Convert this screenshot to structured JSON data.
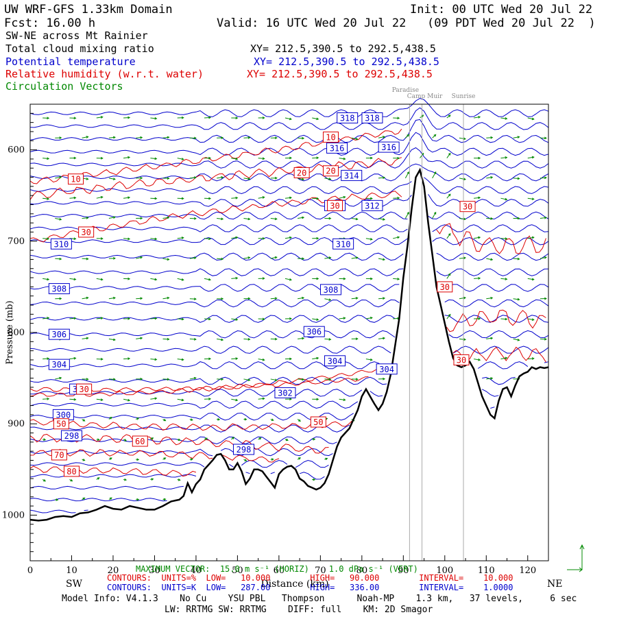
{
  "header": {
    "domain_title": "UW WRF-GFS 1.33km Domain",
    "init": "Init: 00 UTC Wed 20 Jul 22",
    "fcst": "Fcst:   16.00 h",
    "valid": "Valid: 16 UTC Wed 20 Jul 22   (09 PDT Wed 20 Jul 22  )",
    "cross_section": "SW-NE across Mt Rainier",
    "fields": [
      {
        "label": "Total cloud mixing ratio",
        "xy": "XY= 212.5,390.5 to 292.5,438.5",
        "color": "#000000"
      },
      {
        "label": "Potential temperature",
        "xy": "XY= 212.5,390.5 to 292.5,438.5",
        "color": "#0000cc"
      },
      {
        "label": "Relative humidity (w.r.t. water)",
        "xy": "XY= 212.5,390.5 to 292.5,438.5",
        "color": "#dd0000"
      },
      {
        "label": "Circulation Vectors",
        "xy": "",
        "color": "#008800"
      }
    ]
  },
  "chart_data": {
    "type": "cross-section",
    "xlabel": "Distance (km)",
    "ylabel": "Pressure (mb)",
    "xlim": [
      0,
      125
    ],
    "ylim": [
      1050,
      550
    ],
    "x_ticks": [
      0,
      10,
      20,
      30,
      40,
      50,
      60,
      70,
      80,
      90,
      100,
      110,
      120
    ],
    "y_ticks": [
      600,
      700,
      800,
      900,
      1000
    ],
    "y_tick_labels": [
      "600",
      "700",
      "800",
      "900",
      "1000"
    ],
    "endpoint_labels": {
      "left": "SW",
      "right": "NE"
    },
    "locations": [
      {
        "name": "Paradise",
        "x": 91.5
      },
      {
        "name": "Camp Muir",
        "x": 94.5
      },
      {
        "name": "Sunrise",
        "x": 104.5
      }
    ],
    "terrain": {
      "x": [
        0,
        2,
        4,
        6,
        8,
        10,
        12,
        14,
        16,
        18,
        20,
        22,
        24,
        26,
        28,
        30,
        32,
        34,
        36,
        37,
        38,
        39,
        40,
        41,
        42,
        43,
        44,
        45,
        46,
        47,
        48,
        49,
        50,
        51,
        52,
        53,
        54,
        55,
        56,
        57,
        58,
        59,
        60,
        61,
        62,
        63,
        64,
        65,
        66,
        67,
        68,
        69,
        70,
        71,
        72,
        73,
        74,
        75,
        76,
        77,
        78,
        79,
        80,
        81,
        82,
        83,
        84,
        85,
        86,
        87,
        88,
        89,
        90,
        91,
        92,
        93,
        94,
        95,
        96,
        97,
        98,
        99,
        100,
        101,
        102,
        103,
        104,
        105,
        106,
        107,
        108,
        109,
        110,
        111,
        112,
        113,
        114,
        115,
        116,
        117,
        118,
        119,
        120,
        121,
        122,
        123,
        124,
        125
      ],
      "p": [
        1005,
        1006,
        1005,
        1002,
        1001,
        1002,
        998,
        997,
        994,
        990,
        993,
        994,
        990,
        992,
        994,
        994,
        990,
        985,
        983,
        979,
        965,
        975,
        966,
        961,
        950,
        945,
        940,
        934,
        933,
        940,
        950,
        950,
        943,
        952,
        966,
        960,
        950,
        950,
        952,
        958,
        964,
        970,
        955,
        950,
        947,
        946,
        950,
        960,
        963,
        968,
        970,
        972,
        970,
        965,
        955,
        940,
        925,
        915,
        910,
        905,
        895,
        885,
        870,
        862,
        870,
        878,
        885,
        878,
        865,
        845,
        815,
        785,
        740,
        705,
        665,
        630,
        622,
        640,
        680,
        715,
        750,
        770,
        790,
        810,
        828,
        836,
        838,
        836,
        832,
        840,
        855,
        870,
        880,
        890,
        894,
        875,
        862,
        860,
        870,
        858,
        848,
        845,
        843,
        838,
        840,
        838,
        839,
        838
      ],
      "units": "mb"
    },
    "theta_contours": {
      "units": "K",
      "low": 287.0,
      "high": 336.0,
      "interval": 1.0,
      "color": "#0000cc",
      "labels": [
        {
          "text": "318",
          "x": 76.5,
          "p": 565
        },
        {
          "text": "318",
          "x": 82.5,
          "p": 565
        },
        {
          "text": "316",
          "x": 74.0,
          "p": 598
        },
        {
          "text": "316",
          "x": 86.5,
          "p": 597
        },
        {
          "text": "314",
          "x": 77.5,
          "p": 628
        },
        {
          "text": "312",
          "x": 73.5,
          "p": 661
        },
        {
          "text": "312",
          "x": 82.5,
          "p": 661
        },
        {
          "text": "310",
          "x": 7.5,
          "p": 703
        },
        {
          "text": "310",
          "x": 75.5,
          "p": 703
        },
        {
          "text": "308",
          "x": 7.0,
          "p": 752
        },
        {
          "text": "308",
          "x": 72.5,
          "p": 753
        },
        {
          "text": "306",
          "x": 7.0,
          "p": 802
        },
        {
          "text": "306",
          "x": 68.5,
          "p": 799
        },
        {
          "text": "304",
          "x": 7.0,
          "p": 835
        },
        {
          "text": "304",
          "x": 73.5,
          "p": 831
        },
        {
          "text": "304",
          "x": 86.0,
          "p": 840
        },
        {
          "text": "302",
          "x": 12.0,
          "p": 862
        },
        {
          "text": "302",
          "x": 61.5,
          "p": 866
        },
        {
          "text": "300",
          "x": 8.0,
          "p": 890
        },
        {
          "text": "298",
          "x": 10.0,
          "p": 913
        },
        {
          "text": "298",
          "x": 51.5,
          "p": 928
        }
      ]
    },
    "rh_contours": {
      "units": "%",
      "low": 10.0,
      "high": 90.0,
      "interval": 10.0,
      "color": "#dd0000",
      "labels": [
        {
          "text": "10",
          "x": 72.5,
          "p": 586
        },
        {
          "text": "10",
          "x": 11.0,
          "p": 632
        },
        {
          "text": "20",
          "x": 65.5,
          "p": 625
        },
        {
          "text": "20",
          "x": 72.5,
          "p": 623
        },
        {
          "text": "30",
          "x": 13.5,
          "p": 690
        },
        {
          "text": "30",
          "x": 105.5,
          "p": 662
        },
        {
          "text": "30",
          "x": 100.0,
          "p": 750
        },
        {
          "text": "30",
          "x": 104.0,
          "p": 830
        },
        {
          "text": "30",
          "x": 13.0,
          "p": 862
        },
        {
          "text": "30",
          "x": 73.5,
          "p": 661
        },
        {
          "text": "50",
          "x": 7.5,
          "p": 900
        },
        {
          "text": "50",
          "x": 69.5,
          "p": 898
        },
        {
          "text": "60",
          "x": 26.5,
          "p": 919
        },
        {
          "text": "70",
          "x": 7.0,
          "p": 934
        },
        {
          "text": "80",
          "x": 10.0,
          "p": 952
        }
      ]
    },
    "vectors": {
      "color": "#008800",
      "note": "Circulation Vectors"
    }
  },
  "footer": {
    "max_vector": "MAXIMUM VECTOR:  15.0 m s⁻¹ (HORIZ)    1.0 dPa s⁻¹ (VERT)",
    "rh_info": "CONTOURS:  UNITS=%  LOW=   10.000        HIGH=   90.000        INTERVAL=    10.000",
    "theta_info": "CONTOURS:  UNITS=K  LOW=   287.00        HIGH=   336.00        INTERVAL=    1.0000",
    "model_info": "Model Info: V4.1.3    No Cu    YSU PBL   Thompson      Noah-MP    1.3 km,   37 levels,     6 sec",
    "model_info2": "LW: RRTMG SW: RRTMG    DIFF: full    KM: 2D Smagor"
  }
}
